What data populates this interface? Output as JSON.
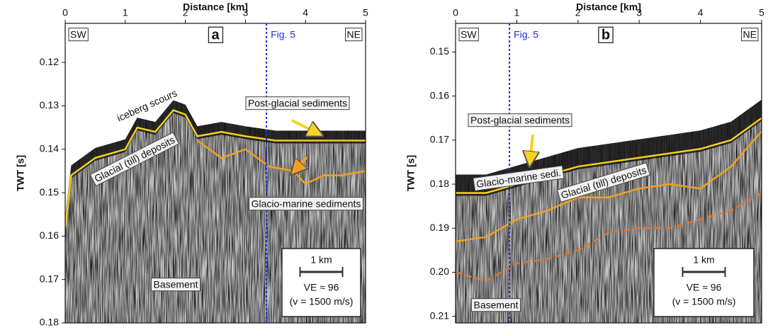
{
  "chart_data": [
    {
      "type": "seismic",
      "panel_label": "a",
      "xlabel": "Distance [km]",
      "ylabel": "TWT [s]",
      "xlim": [
        0,
        5
      ],
      "xticks": [
        0,
        1,
        2,
        3,
        4,
        5
      ],
      "ylim": [
        0.111,
        0.18
      ],
      "yticks": [
        0.12,
        0.13,
        0.14,
        0.15,
        0.16,
        0.17,
        0.18
      ],
      "y_inverted": true,
      "side_labels": [
        "SW",
        "NE"
      ],
      "fig_line": {
        "x": 3.35,
        "label": "Fig. 5",
        "color": "#1f2fd6"
      },
      "annotations": [
        "iceberg scours",
        "Post-glacial sediments",
        "Glacial (till) deposits",
        "Glacio-marine sediments",
        "Basement"
      ],
      "scale_box": {
        "bar": "1 km",
        "ve": "VE ≈ 96",
        "velocity": "(v = 1500 m/s)"
      },
      "series": [
        {
          "color": "#f6d21c",
          "x": [
            0,
            0.1,
            0.5,
            1.0,
            1.2,
            1.5,
            1.8,
            2.0,
            2.2,
            2.6,
            3.0,
            3.5,
            4.0,
            4.5,
            5.0
          ],
          "values": [
            0.158,
            0.146,
            0.142,
            0.14,
            0.135,
            0.136,
            0.131,
            0.132,
            0.137,
            0.136,
            0.137,
            0.138,
            0.138,
            0.138,
            0.138
          ]
        },
        {
          "color": "#f0a020",
          "x": [
            2.2,
            2.6,
            3.0,
            3.4,
            3.8,
            4.0,
            4.3,
            4.6,
            5.0
          ],
          "values": [
            0.138,
            0.142,
            0.14,
            0.144,
            0.145,
            0.148,
            0.146,
            0.146,
            0.145
          ]
        }
      ]
    },
    {
      "type": "seismic",
      "panel_label": "b",
      "xlabel": "Distance [km]",
      "ylabel": "TWT [s]",
      "xlim": [
        0,
        5
      ],
      "xticks": [
        0,
        1,
        2,
        3,
        4,
        5
      ],
      "ylim": [
        0.1435,
        0.2115
      ],
      "yticks": [
        0.15,
        0.16,
        0.17,
        0.18,
        0.19,
        {
          "value": 0.2,
          "label": "0.20"
        },
        0.21
      ],
      "y_inverted": true,
      "side_labels": [
        "SW",
        "NE"
      ],
      "fig_line": {
        "x": 0.88,
        "label": "Fig. 5",
        "color": "#1f2fd6"
      },
      "annotations": [
        "Post-glacial sediments",
        "Glacio-marine sedi.",
        "Glacial (till) deposits",
        "Basement"
      ],
      "scale_box": {
        "bar": "1 km",
        "ve": "VE ≈ 96",
        "velocity": "(v = 1500 m/s)"
      },
      "series": [
        {
          "color": "#f6d21c",
          "x": [
            0,
            0.5,
            1.0,
            1.5,
            2.0,
            2.5,
            3.0,
            3.5,
            4.0,
            4.5,
            5.0
          ],
          "values": [
            0.182,
            0.182,
            0.18,
            0.178,
            0.176,
            0.175,
            0.174,
            0.173,
            0.172,
            0.17,
            0.165
          ]
        },
        {
          "color": "#f0a020",
          "x": [
            0,
            0.5,
            1.0,
            1.5,
            2.0,
            2.5,
            3.0,
            3.5,
            4.0,
            4.5,
            5.0
          ],
          "values": [
            0.193,
            0.192,
            0.188,
            0.186,
            0.183,
            0.183,
            0.181,
            0.18,
            0.181,
            0.176,
            0.168
          ]
        },
        {
          "color": "#e8742a",
          "dash": true,
          "x": [
            0,
            0.5,
            1.0,
            1.5,
            2.0,
            2.5,
            3.0,
            3.5,
            4.0,
            4.5,
            5.0
          ],
          "values": [
            0.2,
            0.202,
            0.198,
            0.197,
            0.195,
            0.191,
            0.19,
            0.19,
            0.188,
            0.186,
            0.182
          ]
        }
      ]
    }
  ]
}
